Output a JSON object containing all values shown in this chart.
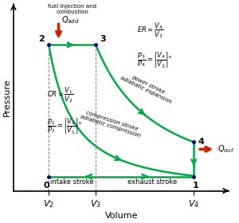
{
  "bg_color": "#ffffff",
  "green": "#00aa44",
  "red_arrow": "#cc2200",
  "V2": 0.18,
  "V3": 0.42,
  "V4": 0.92,
  "p_low": 0.08,
  "p_high": 0.82,
  "p4": 0.2,
  "gamma": 1.4,
  "xlim": [
    0.0,
    1.1
  ],
  "ylim": [
    0.0,
    1.05
  ]
}
